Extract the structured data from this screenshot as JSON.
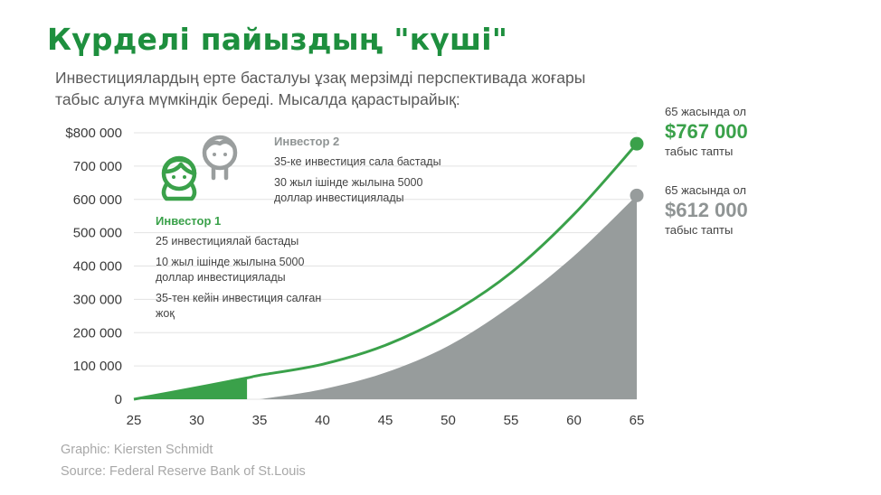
{
  "title": "Күрделі пайыздың \"күші\"",
  "subtitle": "Инвестициялардың ерте басталуы ұзақ мерзімді перспективада жоғары табыс алуға мүмкіндік береді. Мысалда қарастырайық:",
  "investor1": {
    "name": "Инвестор 1",
    "line1": "25 инвестициялай бастады",
    "line2": "10 жыл ішінде жылына 5000 доллар инвестициялады",
    "line3": "35-тен кейін инвестиция салған жоқ"
  },
  "investor2": {
    "name": "Инвестор 2",
    "line1": "35-ке инвестиция сала бастады",
    "line2": "30 жыл ішінде жылына 5000 доллар инвестициялады"
  },
  "result1": {
    "prefix": "65 жасында ол",
    "amount": "$767 000",
    "suffix": "табыс тапты"
  },
  "result2": {
    "prefix": "65 жасында ол",
    "amount": "$612 000",
    "suffix": "табыс тапты"
  },
  "credits": {
    "graphic": "Graphic: Kiersten Schmidt",
    "source": "Source: Federal Reserve Bank of St.Louis"
  },
  "chart_data": {
    "type": "area",
    "x_ticks": [
      25,
      30,
      35,
      40,
      45,
      50,
      55,
      60,
      65
    ],
    "y_ticks": [
      0,
      100000,
      200000,
      300000,
      400000,
      500000,
      600000,
      700000,
      800000
    ],
    "y_tick_labels": [
      "0",
      "100 000",
      "200 000",
      "300 000",
      "400 000",
      "500 000",
      "600 000",
      "700 000",
      "$800 000"
    ],
    "xlim": [
      25,
      65
    ],
    "ylim": [
      0,
      800000
    ],
    "grid": true,
    "series": [
      {
        "key": "investor1",
        "color": "#3aa14a",
        "x": [
          25,
          30,
          34,
          35,
          40,
          45,
          50,
          55,
          60,
          65
        ],
        "y": [
          0,
          35000,
          64000,
          72000,
          105000,
          162000,
          253000,
          380000,
          555000,
          767000
        ]
      },
      {
        "key": "investor2",
        "color": "#979c9c",
        "x": [
          35,
          40,
          45,
          50,
          55,
          60,
          65
        ],
        "y": [
          0,
          30000,
          80000,
          160000,
          280000,
          430000,
          612000
        ]
      }
    ],
    "colors": {
      "green": "#3aa14a",
      "gray": "#979c9c",
      "grid": "#e3e3e3"
    }
  }
}
